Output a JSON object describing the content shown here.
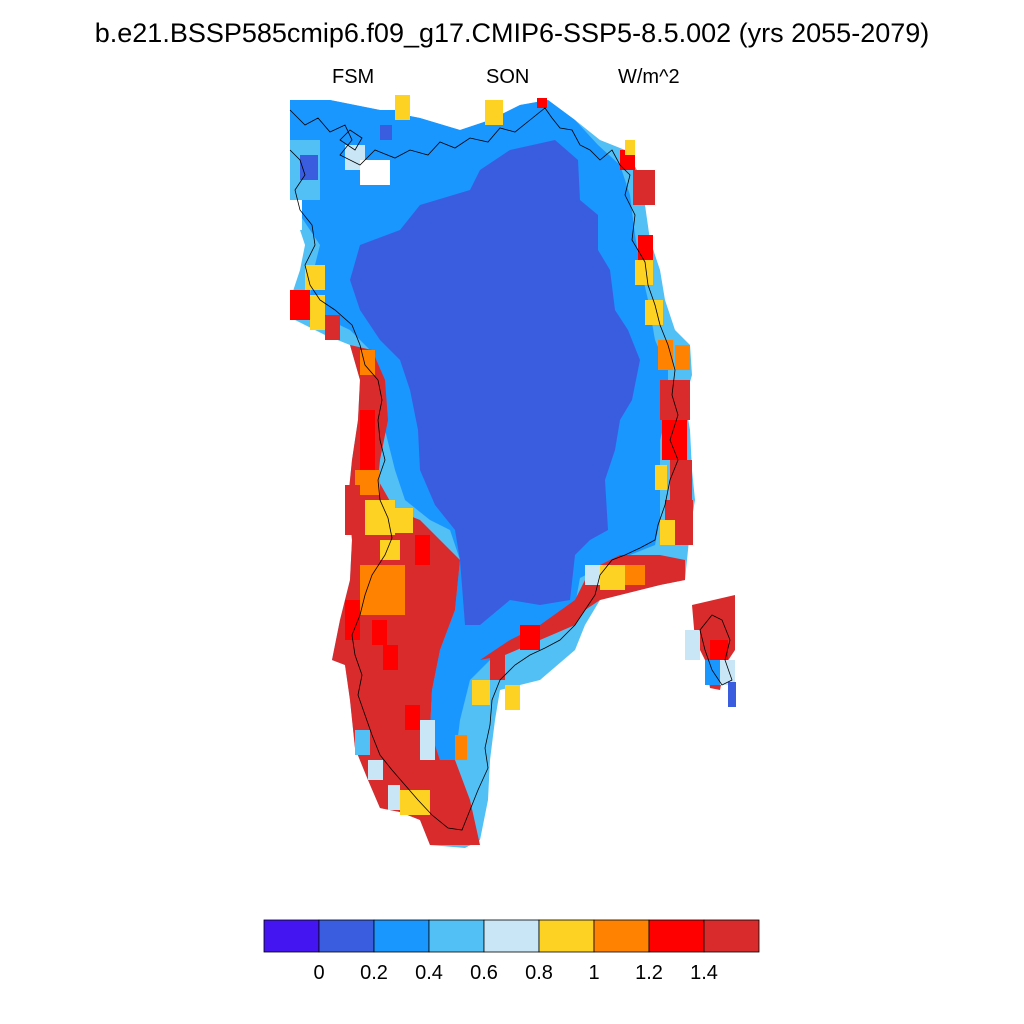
{
  "figure": {
    "title": "b.e21.BSSP585cmip6.f09_g17.CMIP6-SSP5-8.5.002 (yrs 2055-2079)",
    "variable": "FSM",
    "season": "SON",
    "units": "W/m^2"
  },
  "colorbar": {
    "colors": [
      "#4415f0",
      "#3a5de0",
      "#1a96ff",
      "#52c0f5",
      "#c8e6f5",
      "#fed223",
      "#ff8200",
      "#ff0000",
      "#d92b2b"
    ],
    "labels": [
      "0",
      "0.2",
      "0.4",
      "0.6",
      "0.8",
      "1",
      "1.2",
      "1.4"
    ],
    "levels": [
      0,
      0.2,
      0.4,
      0.6,
      0.8,
      1.0,
      1.2,
      1.4
    ]
  },
  "map": {
    "region": "Greenland",
    "field_description": "Snowmelt heat flux (FSM) seasonal mean over Greenland ice sheet and coast"
  }
}
